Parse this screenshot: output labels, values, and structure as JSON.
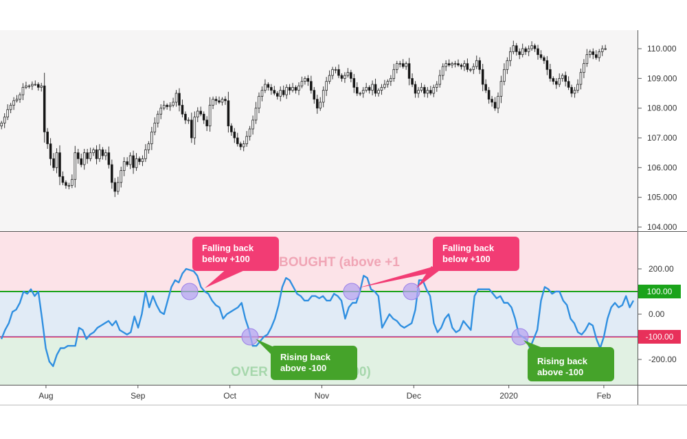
{
  "chart_data": [
    {
      "type": "candlestick",
      "title": "",
      "ylim": [
        103.9,
        111.2
      ],
      "y_ticks": [
        "110.000",
        "109.000",
        "108.000",
        "107.000",
        "106.000",
        "105.000",
        "104.000"
      ],
      "y_tick_values": [
        110,
        109,
        108,
        107,
        106,
        105,
        104
      ],
      "x_ticks": [
        "Aug",
        "Sep",
        "Oct",
        "Nov",
        "Dec",
        "2020",
        "Feb"
      ],
      "x_tick_positions": [
        14.5,
        44.5,
        74.5,
        104.5,
        134.5,
        165.5,
        196.5
      ],
      "x_range": [
        0,
        208
      ],
      "candles_close": [
        107.5,
        107.7,
        107.95,
        108.1,
        108.25,
        108.3,
        108.45,
        108.7,
        108.75,
        108.75,
        108.8,
        108.8,
        108.7,
        108.75,
        107.2,
        106.8,
        106.3,
        106.0,
        106.5,
        105.7,
        105.5,
        105.4,
        105.4,
        105.6,
        106.5,
        106.3,
        106.1,
        106.5,
        106.3,
        106.5,
        106.6,
        106.3,
        106.6,
        106.4,
        106.5,
        106.1,
        105.5,
        105.2,
        105.5,
        105.9,
        106.2,
        106.1,
        106.4,
        106.0,
        106.3,
        106.2,
        106.3,
        106.6,
        106.8,
        107.2,
        107.5,
        107.8,
        108.0,
        108.1,
        108.05,
        108.1,
        108.2,
        108.5,
        108.1,
        107.8,
        107.6,
        107.6,
        107.0,
        107.7,
        107.9,
        107.8,
        107.6,
        107.4,
        108.1,
        108.3,
        108.25,
        108.2,
        108.3,
        108.25,
        107.4,
        107.2,
        107.0,
        106.8,
        106.7,
        106.8,
        107.05,
        107.3,
        107.6,
        108.0,
        108.4,
        108.6,
        108.8,
        108.7,
        108.6,
        108.5,
        108.4,
        108.6,
        108.45,
        108.7,
        108.6,
        108.7,
        108.6,
        108.75,
        108.9,
        109.0,
        108.9,
        108.6,
        108.3,
        108.0,
        108.2,
        108.6,
        108.9,
        109.1,
        109.3,
        109.3,
        109.1,
        109.0,
        109.1,
        109.2,
        109.0,
        108.7,
        108.5,
        108.5,
        108.6,
        108.7,
        108.6,
        108.8,
        108.5,
        108.6,
        108.7,
        108.8,
        108.9,
        109.0,
        109.3,
        109.5,
        109.5,
        109.4,
        109.5,
        109.0,
        108.8,
        108.5,
        108.6,
        108.7,
        108.5,
        108.6,
        108.5,
        108.7,
        108.8,
        109.1,
        109.4,
        109.5,
        109.45,
        109.5,
        109.5,
        109.45,
        109.4,
        109.5,
        109.3,
        109.3,
        109.4,
        109.6,
        109.3,
        108.8,
        108.6,
        108.3,
        108.2,
        108.0,
        108.4,
        108.9,
        109.3,
        109.6,
        109.9,
        110.1,
        109.9,
        109.8,
        110.0,
        109.9,
        110.0,
        110.1,
        110.0,
        109.8,
        109.7,
        109.6,
        109.3,
        109.0,
        108.9,
        108.8,
        109.0,
        109.1,
        108.9,
        108.7,
        108.5,
        108.6,
        108.8,
        109.2,
        109.5,
        109.8,
        109.9,
        109.8,
        109.7,
        109.9,
        110.0,
        110.0
      ]
    },
    {
      "type": "line",
      "title": "",
      "indicator_label": "BOUGHT (above  +1",
      "oversold_label": "OVER              ow -100)",
      "ylim": [
        -320,
        300
      ],
      "y_ticks": [
        "200.00",
        "0.00",
        "-200.00"
      ],
      "y_tick_values": [
        200,
        0,
        -200
      ],
      "levels": [
        {
          "label": "100.00",
          "value": 100,
          "color": "#1aa31a"
        },
        {
          "label": "-100.00",
          "value": -100,
          "color": "#e8305a"
        }
      ],
      "series": [
        {
          "values": [
            -110,
            -70,
            -40,
            10,
            20,
            50,
            100,
            90,
            110,
            80,
            100,
            -20,
            -150,
            -210,
            -230,
            -180,
            -150,
            -150,
            -140,
            -140,
            -140,
            -60,
            -70,
            -110,
            -90,
            -80,
            -60,
            -50,
            -40,
            -30,
            -50,
            -30,
            -70,
            -80,
            -90,
            -80,
            -10,
            -60,
            0,
            100,
            30,
            80,
            40,
            10,
            0,
            60,
            120,
            150,
            140,
            180,
            200,
            195,
            190,
            170,
            120,
            100,
            90,
            60,
            40,
            30,
            -20,
            0,
            10,
            20,
            30,
            50,
            -20,
            -70,
            -140,
            -140,
            -120,
            -100,
            -90,
            -60,
            -20,
            40,
            120,
            160,
            150,
            120,
            90,
            80,
            60,
            60,
            80,
            80,
            70,
            80,
            60,
            60,
            90,
            80,
            60,
            -20,
            30,
            50,
            50,
            100,
            170,
            160,
            110,
            100,
            80,
            -60,
            -30,
            0,
            -20,
            -30,
            -50,
            -60,
            -50,
            -40,
            20,
            150,
            150,
            110,
            80,
            -40,
            -80,
            -60,
            -20,
            0,
            -60,
            -80,
            -70,
            -30,
            -50,
            -70,
            80,
            110,
            110,
            110,
            110,
            90,
            70,
            80,
            50,
            50,
            30,
            -20,
            -90,
            -100,
            -110,
            -150,
            -110,
            -70,
            60,
            120,
            110,
            90,
            100,
            100,
            60,
            40,
            -20,
            -40,
            -80,
            -90,
            -70,
            -40,
            -50,
            -110,
            -150,
            -100,
            -20,
            30,
            50,
            30,
            40,
            80,
            30,
            60
          ]
        }
      ]
    }
  ],
  "annotations": [
    {
      "text_line1": "Falling back",
      "text_line2": "below +100"
    },
    {
      "text_line1": "Falling back",
      "text_line2": "below +100"
    },
    {
      "text_line1": "Rising back",
      "text_line2": "above -100"
    },
    {
      "text_line1": "Rising back",
      "text_line2": "above -100"
    }
  ],
  "colors": {
    "up_candle": "#ffffff",
    "down_candle": "#111111",
    "wick": "#333333",
    "cci_line": "#2f8fe0",
    "overbought_zone": "#fce3e8",
    "neutral_zone": "#e1ebf6",
    "oversold_zone": "#e1f1e3",
    "falling_label_bg": "#f23c74",
    "rising_label_bg": "#45a32a",
    "marker_fill": "#b8a6f0",
    "overbought_text": "#f0a5b5",
    "oversold_text": "#a6d7ac"
  }
}
